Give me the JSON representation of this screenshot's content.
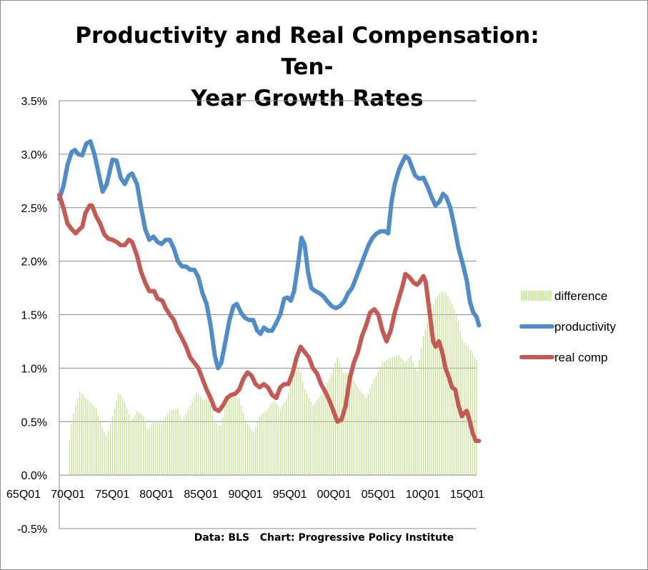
{
  "chart_data": {
    "type": "line",
    "title_line1": "Productivity and Real Compensation: Ten-",
    "title_line2": "Year Growth Rates",
    "source_note": "Data: BLS   Chart: Progressive Policy Institute",
    "y_axis": {
      "min": -0.5,
      "max": 3.5,
      "step": 0.5,
      "format": "percent",
      "gridlines": true
    },
    "y_tick_labels": [
      "-0.5%",
      "0.0%",
      "0.5%",
      "1.0%",
      "1.5%",
      "2.0%",
      "2.5%",
      "3.0%",
      "3.5%"
    ],
    "x_axis": {
      "start": 1965.0,
      "end": 2016.0
    },
    "x_tick_labels": [
      "65Q01",
      "70Q01",
      "75Q01",
      "80Q01",
      "85Q01",
      "90Q01",
      "95Q01",
      "00Q01",
      "05Q01",
      "10Q01",
      "15Q01"
    ],
    "legend_position": "right",
    "series": [
      {
        "name": "difference",
        "style": "bar",
        "color": "#c4df8c",
        "points": [
          [
            1966.0,
            0.0
          ],
          [
            1966.3,
            0.4
          ],
          [
            1966.8,
            0.6
          ],
          [
            1967.5,
            0.78
          ],
          [
            1968.5,
            0.7
          ],
          [
            1969.5,
            0.62
          ],
          [
            1970.2,
            0.45
          ],
          [
            1970.8,
            0.36
          ],
          [
            1971.5,
            0.55
          ],
          [
            1972.3,
            0.78
          ],
          [
            1973.0,
            0.68
          ],
          [
            1973.8,
            0.5
          ],
          [
            1974.5,
            0.6
          ],
          [
            1975.2,
            0.56
          ],
          [
            1975.8,
            0.42
          ],
          [
            1976.5,
            0.5
          ],
          [
            1977.5,
            0.48
          ],
          [
            1978.5,
            0.6
          ],
          [
            1979.5,
            0.62
          ],
          [
            1980.0,
            0.5
          ],
          [
            1981.0,
            0.65
          ],
          [
            1981.8,
            0.78
          ],
          [
            1982.5,
            0.7
          ],
          [
            1983.3,
            0.72
          ],
          [
            1984.0,
            0.5
          ],
          [
            1984.7,
            0.45
          ],
          [
            1985.5,
            0.7
          ],
          [
            1986.3,
            0.74
          ],
          [
            1987.0,
            0.72
          ],
          [
            1987.8,
            0.5
          ],
          [
            1988.7,
            0.4
          ],
          [
            1989.5,
            0.55
          ],
          [
            1990.3,
            0.6
          ],
          [
            1991.2,
            0.7
          ],
          [
            1992.0,
            0.62
          ],
          [
            1992.7,
            0.7
          ],
          [
            1993.5,
            0.9
          ],
          [
            1994.3,
            1.02
          ],
          [
            1995.0,
            0.8
          ],
          [
            1996.0,
            0.65
          ],
          [
            1997.0,
            0.75
          ],
          [
            1998.0,
            0.9
          ],
          [
            1999.0,
            1.1
          ],
          [
            1999.7,
            0.95
          ],
          [
            2000.5,
            0.95
          ],
          [
            2001.5,
            0.82
          ],
          [
            2002.5,
            0.72
          ],
          [
            2003.5,
            0.9
          ],
          [
            2004.5,
            1.05
          ],
          [
            2005.5,
            1.1
          ],
          [
            2006.5,
            1.12
          ],
          [
            2007.3,
            1.05
          ],
          [
            2008.0,
            1.12
          ],
          [
            2008.7,
            0.95
          ],
          [
            2009.5,
            1.3
          ],
          [
            2010.3,
            1.5
          ],
          [
            2011.0,
            1.65
          ],
          [
            2011.7,
            1.72
          ],
          [
            2012.3,
            1.7
          ],
          [
            2013.0,
            1.6
          ],
          [
            2013.7,
            1.45
          ],
          [
            2014.3,
            1.25
          ],
          [
            2015.0,
            1.2
          ],
          [
            2015.6,
            1.12
          ],
          [
            2016.0,
            1.08
          ]
        ]
      },
      {
        "name": "productivity",
        "style": "line",
        "color": "#4f8cc9",
        "points": [
          [
            1965.0,
            2.58
          ],
          [
            1965.5,
            2.7
          ],
          [
            1966.0,
            2.9
          ],
          [
            1966.5,
            3.02
          ],
          [
            1966.9,
            3.04
          ],
          [
            1967.3,
            3.0
          ],
          [
            1967.8,
            2.99
          ],
          [
            1968.3,
            3.1
          ],
          [
            1968.8,
            3.12
          ],
          [
            1969.3,
            3.0
          ],
          [
            1969.8,
            2.82
          ],
          [
            1970.3,
            2.65
          ],
          [
            1970.8,
            2.72
          ],
          [
            1971.5,
            2.95
          ],
          [
            1972.0,
            2.94
          ],
          [
            1972.5,
            2.78
          ],
          [
            1973.0,
            2.72
          ],
          [
            1973.5,
            2.8
          ],
          [
            1973.9,
            2.82
          ],
          [
            1974.5,
            2.72
          ],
          [
            1975.0,
            2.5
          ],
          [
            1975.5,
            2.3
          ],
          [
            1976.0,
            2.2
          ],
          [
            1976.5,
            2.23
          ],
          [
            1977.0,
            2.18
          ],
          [
            1977.5,
            2.16
          ],
          [
            1978.0,
            2.2
          ],
          [
            1978.5,
            2.2
          ],
          [
            1979.0,
            2.12
          ],
          [
            1979.5,
            2.0
          ],
          [
            1980.0,
            1.95
          ],
          [
            1980.5,
            1.95
          ],
          [
            1981.0,
            1.92
          ],
          [
            1981.5,
            1.92
          ],
          [
            1982.0,
            1.85
          ],
          [
            1982.5,
            1.7
          ],
          [
            1983.0,
            1.6
          ],
          [
            1983.5,
            1.4
          ],
          [
            1984.0,
            1.12
          ],
          [
            1984.4,
            1.0
          ],
          [
            1984.8,
            1.05
          ],
          [
            1985.3,
            1.25
          ],
          [
            1985.8,
            1.45
          ],
          [
            1986.3,
            1.58
          ],
          [
            1986.7,
            1.6
          ],
          [
            1987.2,
            1.52
          ],
          [
            1987.7,
            1.47
          ],
          [
            1988.2,
            1.45
          ],
          [
            1988.7,
            1.45
          ],
          [
            1989.2,
            1.35
          ],
          [
            1989.6,
            1.32
          ],
          [
            1990.0,
            1.38
          ],
          [
            1990.5,
            1.35
          ],
          [
            1991.0,
            1.35
          ],
          [
            1991.5,
            1.42
          ],
          [
            1992.0,
            1.5
          ],
          [
            1992.5,
            1.65
          ],
          [
            1992.9,
            1.66
          ],
          [
            1993.3,
            1.63
          ],
          [
            1993.7,
            1.72
          ],
          [
            1994.2,
            1.98
          ],
          [
            1994.6,
            2.22
          ],
          [
            1995.0,
            2.15
          ],
          [
            1995.4,
            1.9
          ],
          [
            1995.8,
            1.75
          ],
          [
            1996.3,
            1.72
          ],
          [
            1996.8,
            1.7
          ],
          [
            1997.3,
            1.67
          ],
          [
            1997.8,
            1.62
          ],
          [
            1998.3,
            1.58
          ],
          [
            1998.8,
            1.56
          ],
          [
            1999.3,
            1.58
          ],
          [
            1999.8,
            1.62
          ],
          [
            2000.3,
            1.7
          ],
          [
            2000.8,
            1.75
          ],
          [
            2001.3,
            1.85
          ],
          [
            2001.8,
            1.95
          ],
          [
            2002.3,
            2.05
          ],
          [
            2002.8,
            2.15
          ],
          [
            2003.3,
            2.22
          ],
          [
            2003.8,
            2.26
          ],
          [
            2004.3,
            2.28
          ],
          [
            2004.8,
            2.28
          ],
          [
            2005.2,
            2.26
          ],
          [
            2005.6,
            2.55
          ],
          [
            2006.0,
            2.72
          ],
          [
            2006.5,
            2.85
          ],
          [
            2006.9,
            2.92
          ],
          [
            2007.3,
            2.98
          ],
          [
            2007.7,
            2.96
          ],
          [
            2008.1,
            2.88
          ],
          [
            2008.5,
            2.8
          ],
          [
            2009.0,
            2.77
          ],
          [
            2009.5,
            2.78
          ],
          [
            2010.0,
            2.7
          ],
          [
            2010.5,
            2.6
          ],
          [
            2011.0,
            2.52
          ],
          [
            2011.5,
            2.56
          ],
          [
            2011.9,
            2.63
          ],
          [
            2012.3,
            2.6
          ],
          [
            2012.8,
            2.5
          ],
          [
            2013.3,
            2.32
          ],
          [
            2013.8,
            2.12
          ],
          [
            2014.3,
            1.98
          ],
          [
            2014.8,
            1.82
          ],
          [
            2015.2,
            1.62
          ],
          [
            2015.6,
            1.52
          ],
          [
            2016.0,
            1.48
          ],
          [
            2016.3,
            1.4
          ]
        ]
      },
      {
        "name": "real comp",
        "style": "line",
        "color": "#c55a55",
        "points": [
          [
            1965.0,
            2.62
          ],
          [
            1965.5,
            2.5
          ],
          [
            1966.0,
            2.35
          ],
          [
            1966.5,
            2.3
          ],
          [
            1967.0,
            2.26
          ],
          [
            1967.5,
            2.3
          ],
          [
            1967.8,
            2.32
          ],
          [
            1968.2,
            2.45
          ],
          [
            1968.7,
            2.52
          ],
          [
            1969.0,
            2.52
          ],
          [
            1969.5,
            2.42
          ],
          [
            1970.0,
            2.35
          ],
          [
            1970.5,
            2.25
          ],
          [
            1971.0,
            2.21
          ],
          [
            1971.5,
            2.2
          ],
          [
            1972.0,
            2.18
          ],
          [
            1972.5,
            2.15
          ],
          [
            1973.0,
            2.15
          ],
          [
            1973.5,
            2.2
          ],
          [
            1973.9,
            2.18
          ],
          [
            1974.5,
            2.05
          ],
          [
            1975.0,
            1.9
          ],
          [
            1975.5,
            1.8
          ],
          [
            1976.0,
            1.72
          ],
          [
            1976.6,
            1.72
          ],
          [
            1977.0,
            1.65
          ],
          [
            1977.6,
            1.63
          ],
          [
            1978.0,
            1.56
          ],
          [
            1978.5,
            1.5
          ],
          [
            1979.0,
            1.45
          ],
          [
            1979.5,
            1.35
          ],
          [
            1980.0,
            1.28
          ],
          [
            1980.5,
            1.2
          ],
          [
            1981.0,
            1.1
          ],
          [
            1981.5,
            1.05
          ],
          [
            1982.0,
            1.0
          ],
          [
            1982.5,
            0.9
          ],
          [
            1983.0,
            0.8
          ],
          [
            1983.5,
            0.72
          ],
          [
            1984.0,
            0.62
          ],
          [
            1984.5,
            0.6
          ],
          [
            1985.0,
            0.65
          ],
          [
            1985.5,
            0.72
          ],
          [
            1986.0,
            0.75
          ],
          [
            1986.5,
            0.76
          ],
          [
            1987.0,
            0.8
          ],
          [
            1987.5,
            0.9
          ],
          [
            1988.0,
            0.96
          ],
          [
            1988.5,
            0.93
          ],
          [
            1989.0,
            0.85
          ],
          [
            1989.5,
            0.82
          ],
          [
            1990.0,
            0.85
          ],
          [
            1990.5,
            0.82
          ],
          [
            1991.0,
            0.75
          ],
          [
            1991.5,
            0.72
          ],
          [
            1992.0,
            0.82
          ],
          [
            1992.5,
            0.85
          ],
          [
            1993.0,
            0.85
          ],
          [
            1993.5,
            0.95
          ],
          [
            1994.0,
            1.1
          ],
          [
            1994.5,
            1.2
          ],
          [
            1995.0,
            1.15
          ],
          [
            1995.5,
            1.1
          ],
          [
            1996.0,
            1.0
          ],
          [
            1996.5,
            0.95
          ],
          [
            1997.0,
            0.85
          ],
          [
            1997.5,
            0.78
          ],
          [
            1998.0,
            0.7
          ],
          [
            1998.5,
            0.6
          ],
          [
            1999.0,
            0.5
          ],
          [
            1999.5,
            0.52
          ],
          [
            2000.0,
            0.65
          ],
          [
            2000.5,
            0.9
          ],
          [
            2001.0,
            1.05
          ],
          [
            2001.5,
            1.15
          ],
          [
            2002.0,
            1.3
          ],
          [
            2002.5,
            1.4
          ],
          [
            2003.0,
            1.52
          ],
          [
            2003.5,
            1.55
          ],
          [
            2004.0,
            1.5
          ],
          [
            2004.5,
            1.35
          ],
          [
            2005.0,
            1.25
          ],
          [
            2005.5,
            1.35
          ],
          [
            2006.0,
            1.52
          ],
          [
            2006.5,
            1.65
          ],
          [
            2007.0,
            1.78
          ],
          [
            2007.3,
            1.88
          ],
          [
            2007.8,
            1.85
          ],
          [
            2008.3,
            1.8
          ],
          [
            2008.7,
            1.78
          ],
          [
            2009.0,
            1.8
          ],
          [
            2009.5,
            1.86
          ],
          [
            2009.8,
            1.8
          ],
          [
            2010.3,
            1.5
          ],
          [
            2010.7,
            1.25
          ],
          [
            2011.0,
            1.2
          ],
          [
            2011.4,
            1.25
          ],
          [
            2011.8,
            1.15
          ],
          [
            2012.2,
            1.0
          ],
          [
            2012.6,
            0.92
          ],
          [
            2013.0,
            0.82
          ],
          [
            2013.4,
            0.8
          ],
          [
            2013.8,
            0.65
          ],
          [
            2014.2,
            0.55
          ],
          [
            2014.5,
            0.58
          ],
          [
            2014.8,
            0.6
          ],
          [
            2015.2,
            0.5
          ],
          [
            2015.5,
            0.4
          ],
          [
            2015.9,
            0.32
          ],
          [
            2016.3,
            0.32
          ]
        ]
      }
    ]
  }
}
